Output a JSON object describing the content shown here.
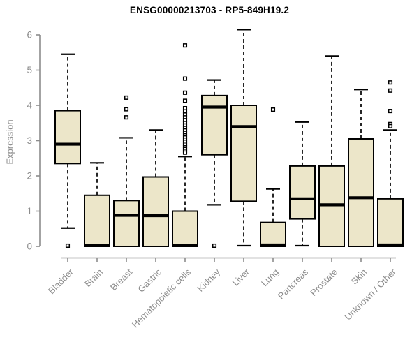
{
  "title": "ENSG00000213703 - RP5-849H19.2",
  "chart_data": {
    "type": "boxplot",
    "title": "ENSG00000213703 - RP5-849H19.2",
    "xlabel": "",
    "ylabel": "Expression",
    "ylim": [
      0,
      6
    ],
    "yticks": [
      0,
      1,
      2,
      3,
      4,
      5,
      6
    ],
    "grid": false,
    "legend": "none",
    "categories": [
      "Bladder",
      "Brain",
      "Breast",
      "Gastric",
      "Hematopoietic cells",
      "Kidney",
      "Liver",
      "Lung",
      "Pancreas",
      "Prostate",
      "Skin",
      "Unknown / Other"
    ],
    "series": [
      {
        "category": "Bladder",
        "whisker_low": 0.52,
        "q1": 2.35,
        "median": 2.9,
        "q3": 3.85,
        "whisker_high": 5.45,
        "outliers": [
          0.02
        ]
      },
      {
        "category": "Brain",
        "whisker_low": 0.0,
        "q1": 0.0,
        "median": 0.03,
        "q3": 1.45,
        "whisker_high": 2.37,
        "outliers": []
      },
      {
        "category": "Breast",
        "whisker_low": 0.0,
        "q1": 0.0,
        "median": 0.88,
        "q3": 1.3,
        "whisker_high": 3.08,
        "outliers": [
          4.22,
          3.89,
          3.66
        ]
      },
      {
        "category": "Gastric",
        "whisker_low": 0.0,
        "q1": 0.0,
        "median": 0.87,
        "q3": 1.97,
        "whisker_high": 3.3,
        "outliers": []
      },
      {
        "category": "Hematopoietic cells",
        "whisker_low": 0.0,
        "q1": 0.0,
        "median": 0.03,
        "q3": 1.0,
        "whisker_high": 2.55,
        "outliers": [
          5.7,
          4.76,
          4.36,
          4.13,
          3.92,
          3.83,
          3.74,
          3.66,
          3.58,
          3.5,
          3.43,
          3.36,
          3.29,
          3.22,
          3.15,
          3.09,
          3.03,
          2.97,
          2.91,
          2.86,
          2.81,
          2.76,
          2.71,
          2.66
        ]
      },
      {
        "category": "Kidney",
        "whisker_low": 1.18,
        "q1": 2.6,
        "median": 3.95,
        "q3": 4.28,
        "whisker_high": 4.72,
        "outliers": [
          0.02
        ]
      },
      {
        "category": "Liver",
        "whisker_low": 0.02,
        "q1": 1.28,
        "median": 3.4,
        "q3": 4.0,
        "whisker_high": 6.15,
        "outliers": []
      },
      {
        "category": "Lung",
        "whisker_low": 0.0,
        "q1": 0.0,
        "median": 0.04,
        "q3": 0.68,
        "whisker_high": 1.63,
        "outliers": [
          3.88
        ]
      },
      {
        "category": "Pancreas",
        "whisker_low": 0.02,
        "q1": 0.78,
        "median": 1.35,
        "q3": 2.28,
        "whisker_high": 3.53,
        "outliers": []
      },
      {
        "category": "Prostate",
        "whisker_low": 0.0,
        "q1": 0.0,
        "median": 1.18,
        "q3": 2.28,
        "whisker_high": 5.4,
        "outliers": []
      },
      {
        "category": "Skin",
        "whisker_low": 0.0,
        "q1": 0.0,
        "median": 1.38,
        "q3": 3.05,
        "whisker_high": 4.45,
        "outliers": []
      },
      {
        "category": "Unknown / Other",
        "whisker_low": 0.0,
        "q1": 0.0,
        "median": 0.04,
        "q3": 1.35,
        "whisker_high": 3.3,
        "outliers": [
          4.65,
          4.42,
          3.84,
          3.47,
          3.41
        ]
      }
    ],
    "colors": {
      "box_fill": "#ece6c9",
      "box_border": "#000000",
      "median": "#000000",
      "whisker": "#000000",
      "axis": "#8c8c8c",
      "tick_text": "#8c8c8c",
      "title_text": "#000000",
      "background": "#ffffff"
    }
  }
}
